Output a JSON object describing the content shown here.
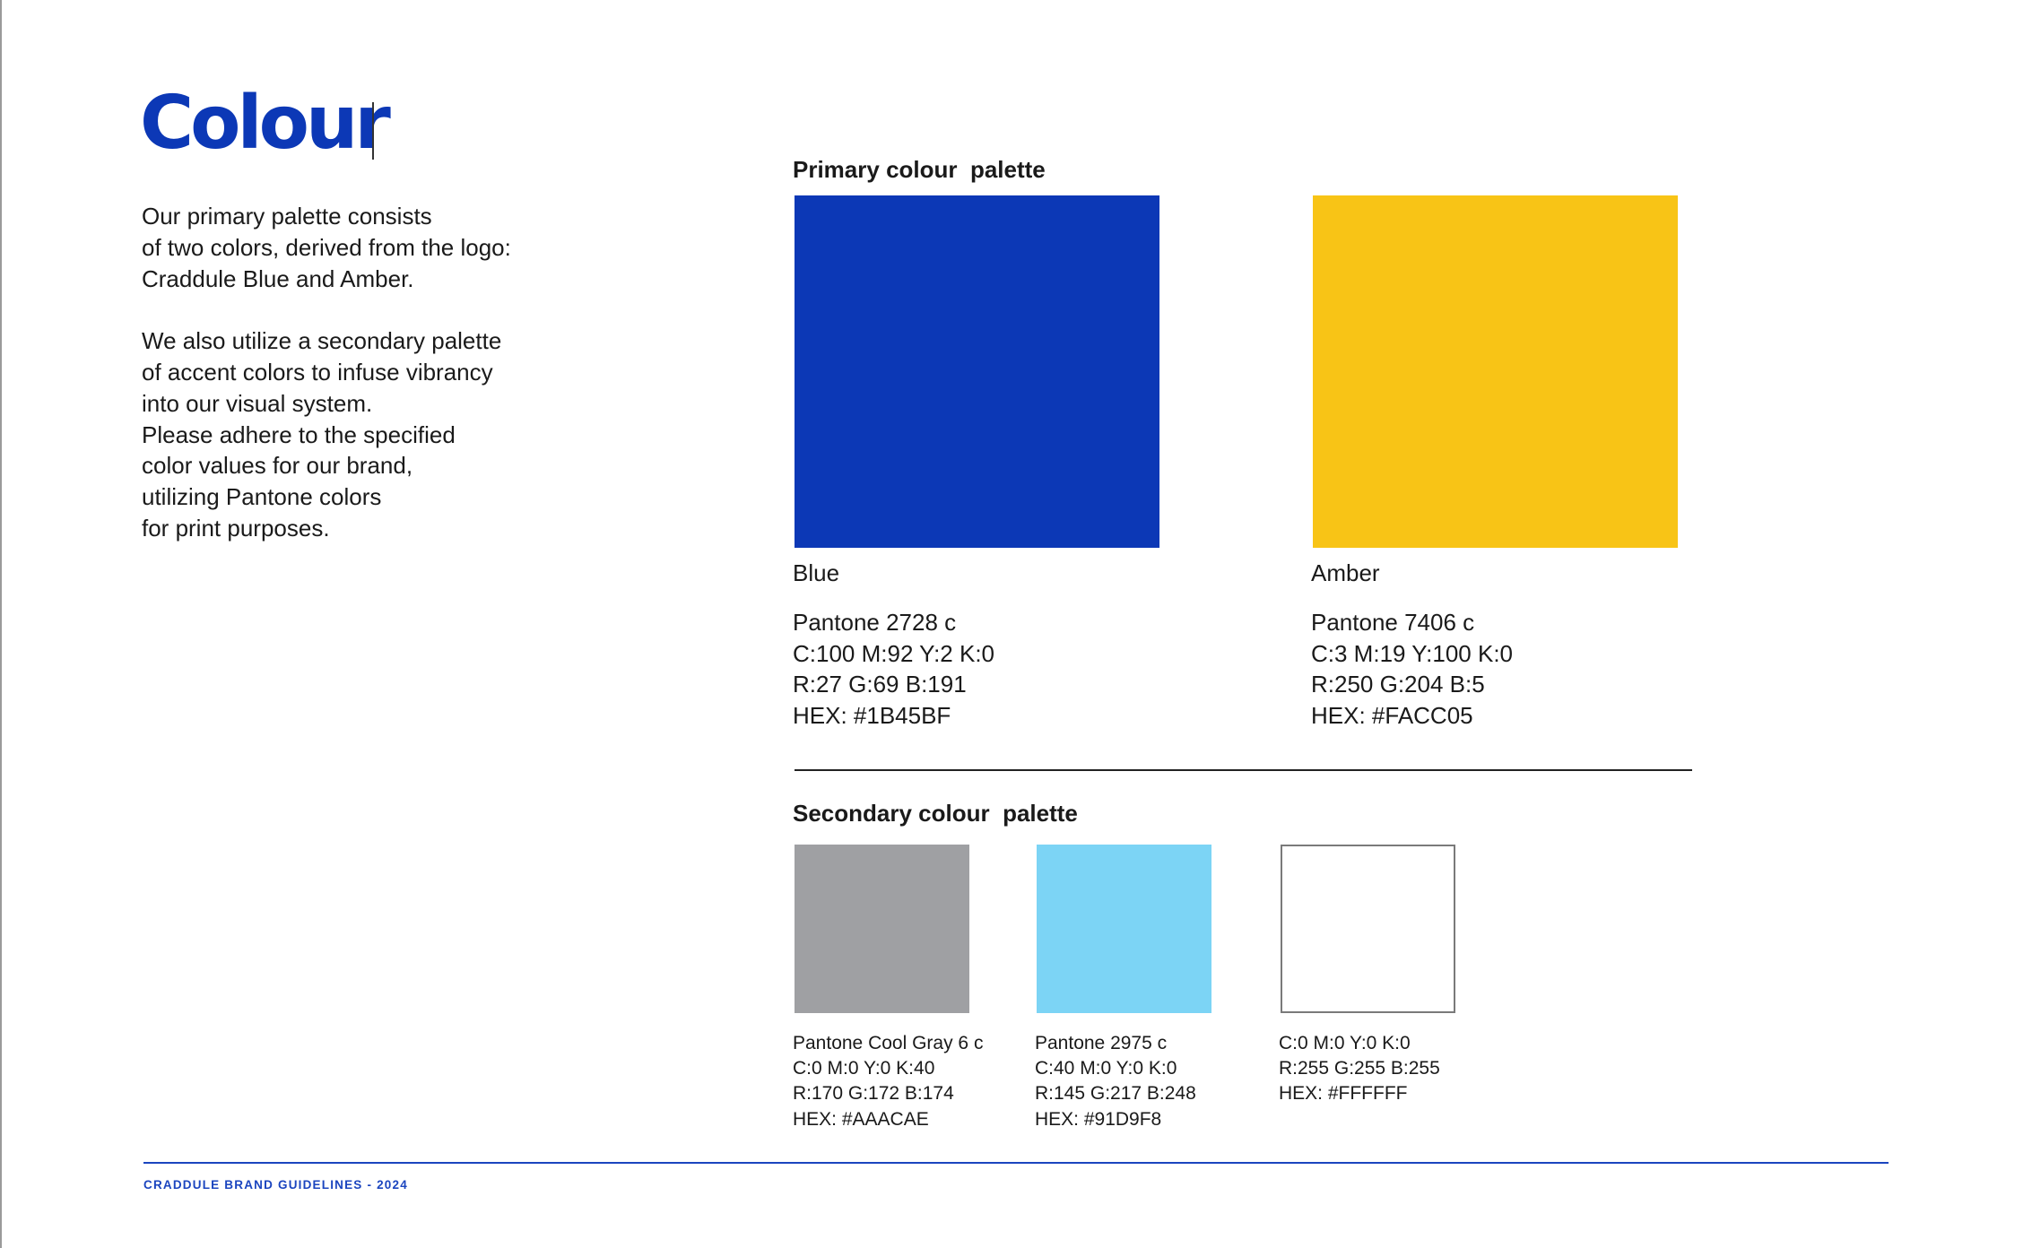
{
  "page": {
    "title": "Colour",
    "intro_paragraphs": [
      "Our primary palette consists\nof two colors, derived from the logo:\nCraddule Blue and Amber.",
      "We also utilize a secondary palette\nof accent colors to infuse vibrancy\ninto our visual system.\nPlease adhere to the specified\ncolor values for our brand,\nutilizing Pantone colors\nfor print purposes."
    ],
    "footer": "CRADDULE BRAND GUIDELINES - 2024"
  },
  "primary": {
    "heading": "Primary colour  palette",
    "colors": [
      {
        "name": "Blue",
        "swatch": "#0C38B6",
        "pantone": "Pantone 2728 c",
        "cmyk": "C:100 M:92 Y:2 K:0",
        "rgb": "R:27 G:69 B:191",
        "hex": "HEX: #1B45BF"
      },
      {
        "name": "Amber",
        "swatch": "#F8C416",
        "pantone": "Pantone 7406 c",
        "cmyk": "C:3 M:19 Y:100 K:0",
        "rgb": "R:250 G:204 B:5",
        "hex": "HEX: #FACC05"
      }
    ]
  },
  "secondary": {
    "heading": "Secondary colour  palette",
    "colors": [
      {
        "swatch": "#9FA0A3",
        "pantone": "Pantone Cool Gray 6 c",
        "cmyk": "C:0 M:0 Y:0 K:40",
        "rgb": "R:170 G:172 B:174",
        "hex": "HEX: #AAACAE"
      },
      {
        "swatch": "#7CD4F5",
        "pantone": "Pantone 2975 c",
        "cmyk": "C:40 M:0 Y:0 K:0",
        "rgb": "R:145 G:217 B:248",
        "hex": "HEX: #91D9F8"
      },
      {
        "swatch": "#FFFFFF",
        "cmyk": "C:0 M:0 Y:0 K:0",
        "rgb": "R:255 G:255 B:255",
        "hex": "HEX: #FFFFFF"
      }
    ]
  },
  "theme": {
    "brand_blue": "#0C38B6",
    "footer_rule": "#1B45BF",
    "text": "#1A1A1A"
  }
}
